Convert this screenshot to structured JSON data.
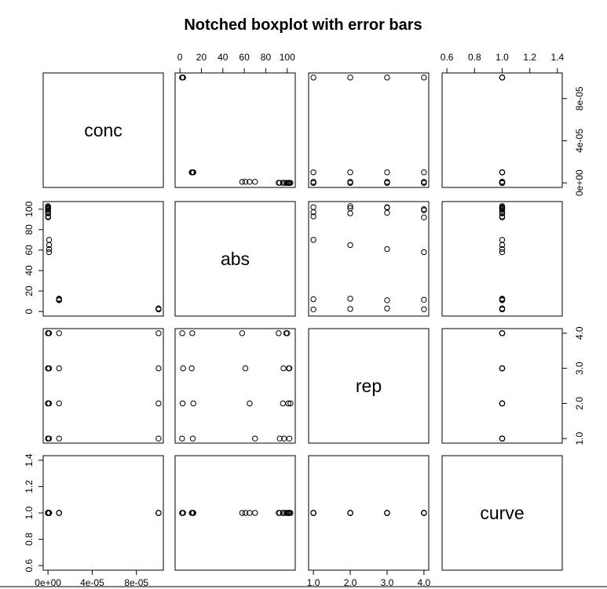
{
  "chart_data": {
    "type": "scatter",
    "title": "Notched boxplot with error bars",
    "variables": [
      "conc",
      "abs",
      "rep",
      "curve"
    ],
    "axes": {
      "conc": {
        "range": [
          0,
          0.0001
        ],
        "ticks": [
          0,
          4e-05,
          8e-05
        ],
        "tick_labels": [
          "0e+00",
          "4e-05",
          "8e-05"
        ]
      },
      "abs": {
        "range": [
          0,
          103
        ],
        "ticks": [
          0,
          20,
          40,
          60,
          80,
          100
        ],
        "tick_labels": [
          "0",
          "20",
          "40",
          "60",
          "80",
          "100"
        ]
      },
      "rep": {
        "range": [
          1,
          4
        ],
        "ticks": [
          1,
          2,
          3,
          4
        ],
        "tick_labels": [
          "1.0",
          "2.0",
          "3.0",
          "4.0"
        ]
      },
      "curve": {
        "range": [
          0.6,
          1.4
        ],
        "ticks": [
          0.6,
          0.8,
          1.0,
          1.2,
          1.4
        ],
        "tick_labels": [
          "0.6",
          "0.8",
          "1.0",
          "1.2",
          "1.4"
        ]
      }
    },
    "observations": [
      {
        "conc": 0.0001,
        "abs": 2,
        "rep": 1,
        "curve": 1
      },
      {
        "conc": 0.0001,
        "abs": 2.5,
        "rep": 2,
        "curve": 1
      },
      {
        "conc": 0.0001,
        "abs": 3,
        "rep": 3,
        "curve": 1
      },
      {
        "conc": 0.0001,
        "abs": 2.2,
        "rep": 4,
        "curve": 1
      },
      {
        "conc": 1e-05,
        "abs": 12,
        "rep": 1,
        "curve": 1
      },
      {
        "conc": 1e-05,
        "abs": 12.5,
        "rep": 2,
        "curve": 1
      },
      {
        "conc": 1e-05,
        "abs": 11,
        "rep": 3,
        "curve": 1
      },
      {
        "conc": 1e-05,
        "abs": 11.5,
        "rep": 4,
        "curve": 1
      },
      {
        "conc": 1e-06,
        "abs": 70,
        "rep": 1,
        "curve": 1
      },
      {
        "conc": 1e-06,
        "abs": 65,
        "rep": 2,
        "curve": 1
      },
      {
        "conc": 1e-06,
        "abs": 61,
        "rep": 3,
        "curve": 1
      },
      {
        "conc": 1e-06,
        "abs": 58,
        "rep": 4,
        "curve": 1
      },
      {
        "conc": 1e-07,
        "abs": 93,
        "rep": 1,
        "curve": 1
      },
      {
        "conc": 1e-07,
        "abs": 96,
        "rep": 2,
        "curve": 1
      },
      {
        "conc": 1e-07,
        "abs": 96.5,
        "rep": 3,
        "curve": 1
      },
      {
        "conc": 1e-07,
        "abs": 92,
        "rep": 4,
        "curve": 1
      },
      {
        "conc": 1e-08,
        "abs": 97,
        "rep": 1,
        "curve": 1
      },
      {
        "conc": 1e-08,
        "abs": 101,
        "rep": 2,
        "curve": 1
      },
      {
        "conc": 1e-08,
        "abs": 102,
        "rep": 3,
        "curve": 1
      },
      {
        "conc": 1e-08,
        "abs": 99,
        "rep": 4,
        "curve": 1
      },
      {
        "conc": 0,
        "abs": 102,
        "rep": 1,
        "curve": 1
      },
      {
        "conc": 0,
        "abs": 103,
        "rep": 2,
        "curve": 1
      },
      {
        "conc": 0,
        "abs": 101.5,
        "rep": 3,
        "curve": 1
      },
      {
        "conc": 0,
        "abs": 100,
        "rep": 4,
        "curve": 1
      }
    ]
  }
}
